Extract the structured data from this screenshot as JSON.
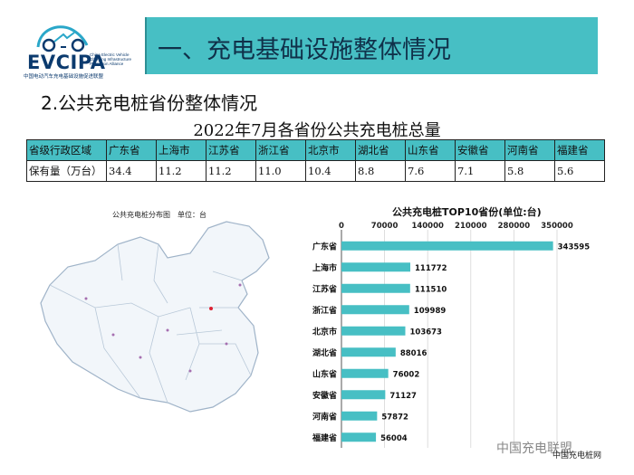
{
  "logo": {
    "name": "EVCIPA",
    "en_sub": "China Electric Vehicle Charging Infrastructure Promotion Alliance",
    "cn_sub": "中国电动汽车充电基础设施促进联盟"
  },
  "header": {
    "title": "一、充电基础设施整体情况"
  },
  "section": {
    "heading": "2.公共充电桩省份整体情况"
  },
  "table": {
    "title": "2022年7月各省份公共充电桩总量",
    "header_label": "省级行政区域",
    "row_label": "保有量（万台）",
    "provinces": [
      "广东省",
      "上海市",
      "江苏省",
      "浙江省",
      "北京市",
      "湖北省",
      "山东省",
      "安徽省",
      "河南省",
      "福建省"
    ],
    "values": [
      "34.4",
      "11.2",
      "11.2",
      "11.0",
      "10.4",
      "8.8",
      "7.6",
      "7.1",
      "5.8",
      "5.6"
    ]
  },
  "map": {
    "title": "公共充电桩分布图　单位：台"
  },
  "chart_data": {
    "type": "bar",
    "orientation": "horizontal",
    "title": "公共充电桩TOP10省份(单位:台)",
    "categories": [
      "广东省",
      "上海市",
      "江苏省",
      "浙江省",
      "北京市",
      "湖北省",
      "山东省",
      "安徽省",
      "河南省",
      "福建省"
    ],
    "values": [
      343595,
      111772,
      111510,
      109989,
      103673,
      88016,
      76002,
      71127,
      57872,
      56004
    ],
    "xticks": [
      0,
      70000,
      140000,
      210000,
      280000,
      350000
    ],
    "xlim": [
      0,
      350000
    ],
    "axis_position": "top",
    "grid": true,
    "bar_color": "#47bfc4"
  },
  "watermark": {
    "text": "中国充电联盟",
    "sub": "中国充电桩网"
  }
}
